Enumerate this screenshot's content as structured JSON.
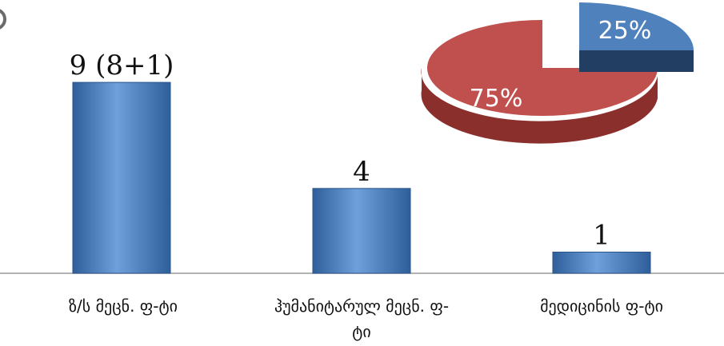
{
  "chart_data": [
    {
      "type": "bar",
      "categories": [
        "ზ/ს მეცნ. ფ-ტი",
        "ჰუმანიტარულ მეცნ. ფ-ტი",
        "მედიცინის ფ-ტი"
      ],
      "values": [
        9,
        4,
        1
      ],
      "value_labels": [
        "9 (8+1)",
        "4",
        "1"
      ],
      "ylim": [
        0,
        11
      ],
      "grid": false,
      "colors": {
        "bar": "#4f81bd",
        "bar_light": "#6fa0dc",
        "bar_dark": "#2f5f9a"
      }
    },
    {
      "type": "pie",
      "values": [
        25,
        75
      ],
      "labels": [
        "25%",
        "75%"
      ],
      "colors": [
        "#4f81bd",
        "#c0504d"
      ],
      "exploded": [
        true,
        false
      ],
      "style": "3d"
    }
  ]
}
